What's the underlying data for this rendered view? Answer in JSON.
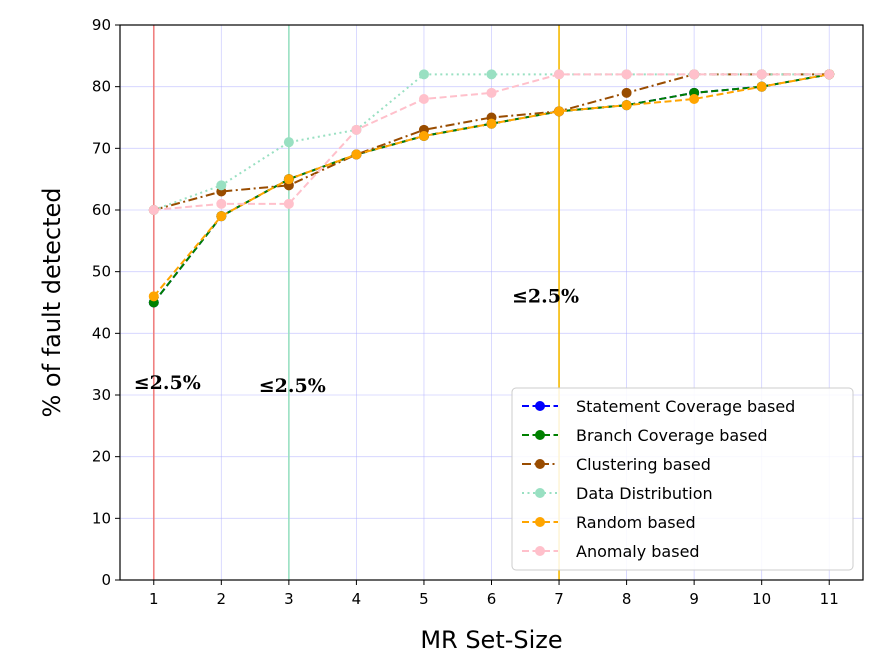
{
  "chart_data": {
    "type": "line",
    "title": "",
    "xlabel": "MR Set-Size",
    "ylabel": "% of fault detected",
    "x": [
      1,
      2,
      3,
      4,
      5,
      6,
      7,
      8,
      9,
      10,
      11
    ],
    "xlim": [
      0.5,
      11.5
    ],
    "ylim": [
      0,
      90
    ],
    "yticks": [
      0,
      10,
      20,
      30,
      40,
      50,
      60,
      70,
      80,
      90
    ],
    "grid": true,
    "legend_position": "lower-right",
    "series": [
      {
        "name": "Statement Coverage based",
        "color": "#0000ff",
        "dash": "dashed",
        "marker": "circle",
        "values": [
          45,
          59,
          65,
          69,
          72,
          74,
          76,
          77,
          79,
          80,
          82
        ]
      },
      {
        "name": "Branch Coverage based",
        "color": "#008000",
        "dash": "dashed",
        "marker": "circle",
        "values": [
          45,
          59,
          65,
          69,
          72,
          74,
          76,
          77,
          79,
          80,
          82
        ]
      },
      {
        "name": "Clustering based",
        "color": "#994c00",
        "dash": "dashdot",
        "marker": "circle",
        "values": [
          60,
          63,
          64,
          69,
          73,
          75,
          76,
          79,
          82,
          82,
          82
        ]
      },
      {
        "name": "Data Distribution",
        "color": "#99e0c2",
        "dash": "dotted",
        "marker": "circle",
        "values": [
          60,
          64,
          71,
          73,
          82,
          82,
          82,
          82,
          82,
          82,
          82
        ]
      },
      {
        "name": "Random based",
        "color": "#ffa500",
        "dash": "dashed",
        "marker": "circle",
        "values": [
          46,
          59,
          65,
          69,
          72,
          74,
          76,
          77,
          78,
          80,
          82
        ]
      },
      {
        "name": "Anomaly based",
        "color": "#ffc0cb",
        "dash": "dashed",
        "marker": "circle",
        "values": [
          60,
          61,
          61,
          73,
          78,
          79,
          82,
          82,
          82,
          82,
          82
        ]
      }
    ],
    "vertical_lines": [
      {
        "x": 1,
        "color": "#f08080"
      },
      {
        "x": 3,
        "color": "#99e0c2"
      },
      {
        "x": 7,
        "color": "#f5b800"
      }
    ],
    "annotations": [
      {
        "text": "≤2.5%",
        "x": 1.2,
        "y": 31
      },
      {
        "text": "≤2.5%",
        "x": 3.05,
        "y": 30.5
      },
      {
        "text": "≤2.5%",
        "x": 6.8,
        "y": 45
      }
    ]
  }
}
